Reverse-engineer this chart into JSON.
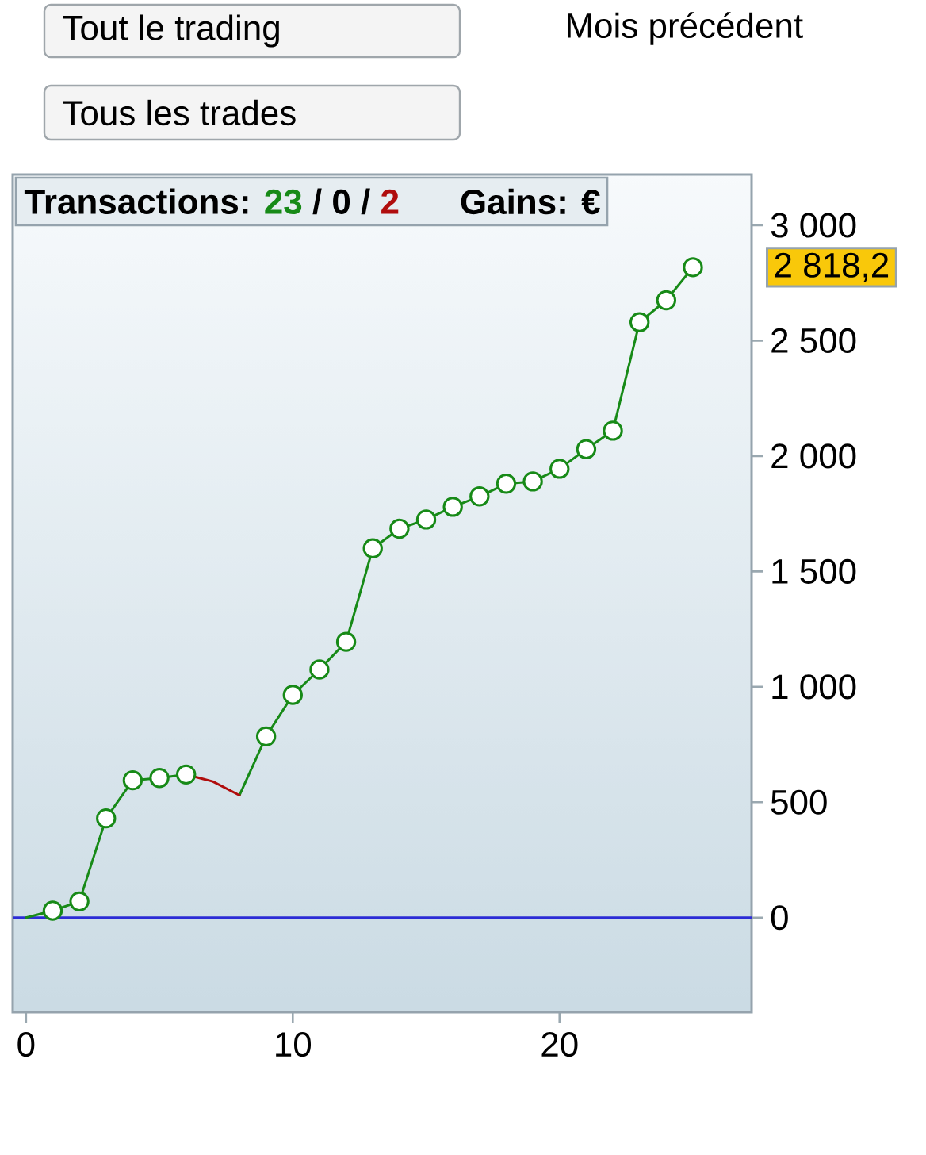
{
  "chart_data": {
    "type": "line",
    "title": "Transactions: 23 / 0 / 2",
    "subtitle": "Gains: €",
    "xlim": [
      -0.5,
      27.2
    ],
    "xticks": [
      0,
      10,
      20
    ],
    "ylim": [
      -410,
      3220
    ],
    "yticks": [
      0,
      500,
      {
        "value": 1000,
        "label": "1 000"
      },
      {
        "value": 1500,
        "label": "1 500"
      },
      {
        "value": 2000,
        "label": "2 000"
      },
      {
        "value": 2500,
        "label": "2 500"
      },
      {
        "value": 3000,
        "label": "3 000"
      }
    ],
    "marker": "none",
    "line_style": "solid",
    "series": [
      {
        "color": "#178a17",
        "x": [
          0,
          1,
          2,
          3,
          4,
          5,
          6,
          7,
          8,
          9,
          10,
          11,
          12,
          13,
          14,
          15,
          16,
          17,
          18,
          19,
          20,
          21,
          22,
          23,
          24,
          25
        ],
        "values": [
          0,
          30,
          70,
          430,
          595,
          605,
          620,
          null,
          530,
          785,
          965,
          1075,
          1195,
          1600,
          1685,
          1725,
          1780,
          1825,
          1880,
          1890,
          1945,
          2030,
          2110,
          2580,
          2675,
          2818.2
        ]
      },
      {
        "color": "#b00d0d",
        "x": [
          6,
          7,
          8
        ],
        "values": [
          620,
          590,
          530
        ]
      },
      {
        "type": "scatter",
        "marker": "circle",
        "color": "#178a17",
        "x": [
          1,
          2,
          3,
          4,
          5,
          6,
          9,
          10,
          11,
          12,
          13,
          14,
          15,
          16,
          17,
          18,
          19,
          20,
          21,
          22,
          23,
          24,
          25
        ],
        "values": [
          30,
          70,
          430,
          595,
          605,
          620,
          785,
          965,
          1075,
          1195,
          1600,
          1685,
          1725,
          1780,
          1825,
          1880,
          1890,
          1945,
          2030,
          2110,
          2580,
          2675,
          2818.2
        ]
      }
    ],
    "ref_lines": [
      {
        "axis": "y",
        "value": 0,
        "color": "#2c2cd6"
      }
    ],
    "annotations": [
      "2 818,2",
      "Tout le trading",
      "Tous les trades",
      "Mois précédent"
    ]
  }
}
